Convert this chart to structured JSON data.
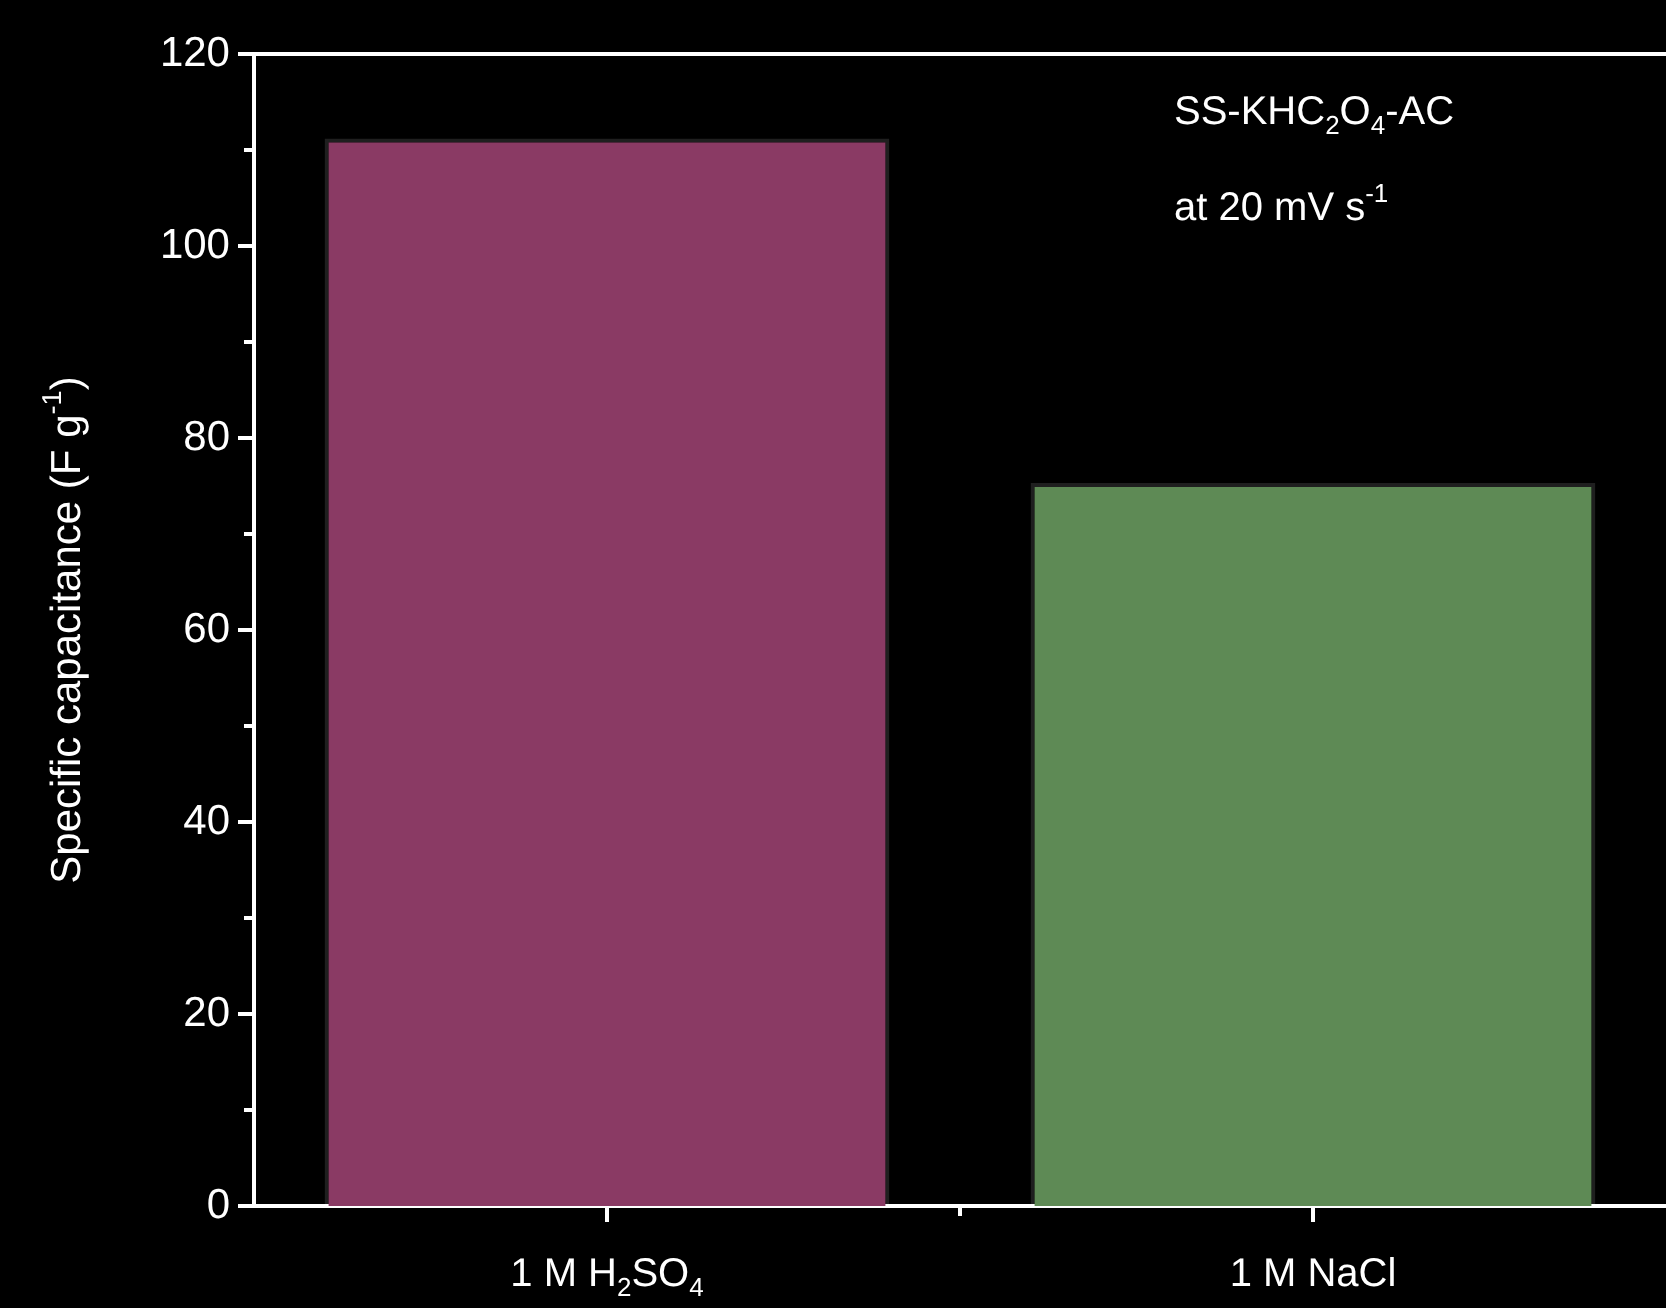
{
  "chart_data": {
    "type": "bar",
    "categories": [
      "1 M H$_{2}$SO$_{4}$",
      "1 M NaCl"
    ],
    "values": [
      111.2,
      75.3
    ],
    "colors": [
      "#8a3a64",
      "#5e8a55"
    ],
    "ylabel": "Specific capacitance (F g$^{-1}$)",
    "ylim": [
      0,
      120
    ],
    "yticks": [
      0,
      {
        "value": 10,
        "label": null
      },
      20,
      {
        "value": 30,
        "label": null
      },
      40,
      {
        "value": 50,
        "label": null
      },
      60,
      {
        "value": 70,
        "label": null
      },
      80,
      {
        "value": 90,
        "label": null
      },
      100,
      {
        "value": 110,
        "label": null
      },
      120
    ],
    "annotations": [
      "SS-KHC$_{2}$O$_{4}$-AC",
      "at 20 mV s$^{-1}$"
    ],
    "grid": false,
    "legend": false
  }
}
